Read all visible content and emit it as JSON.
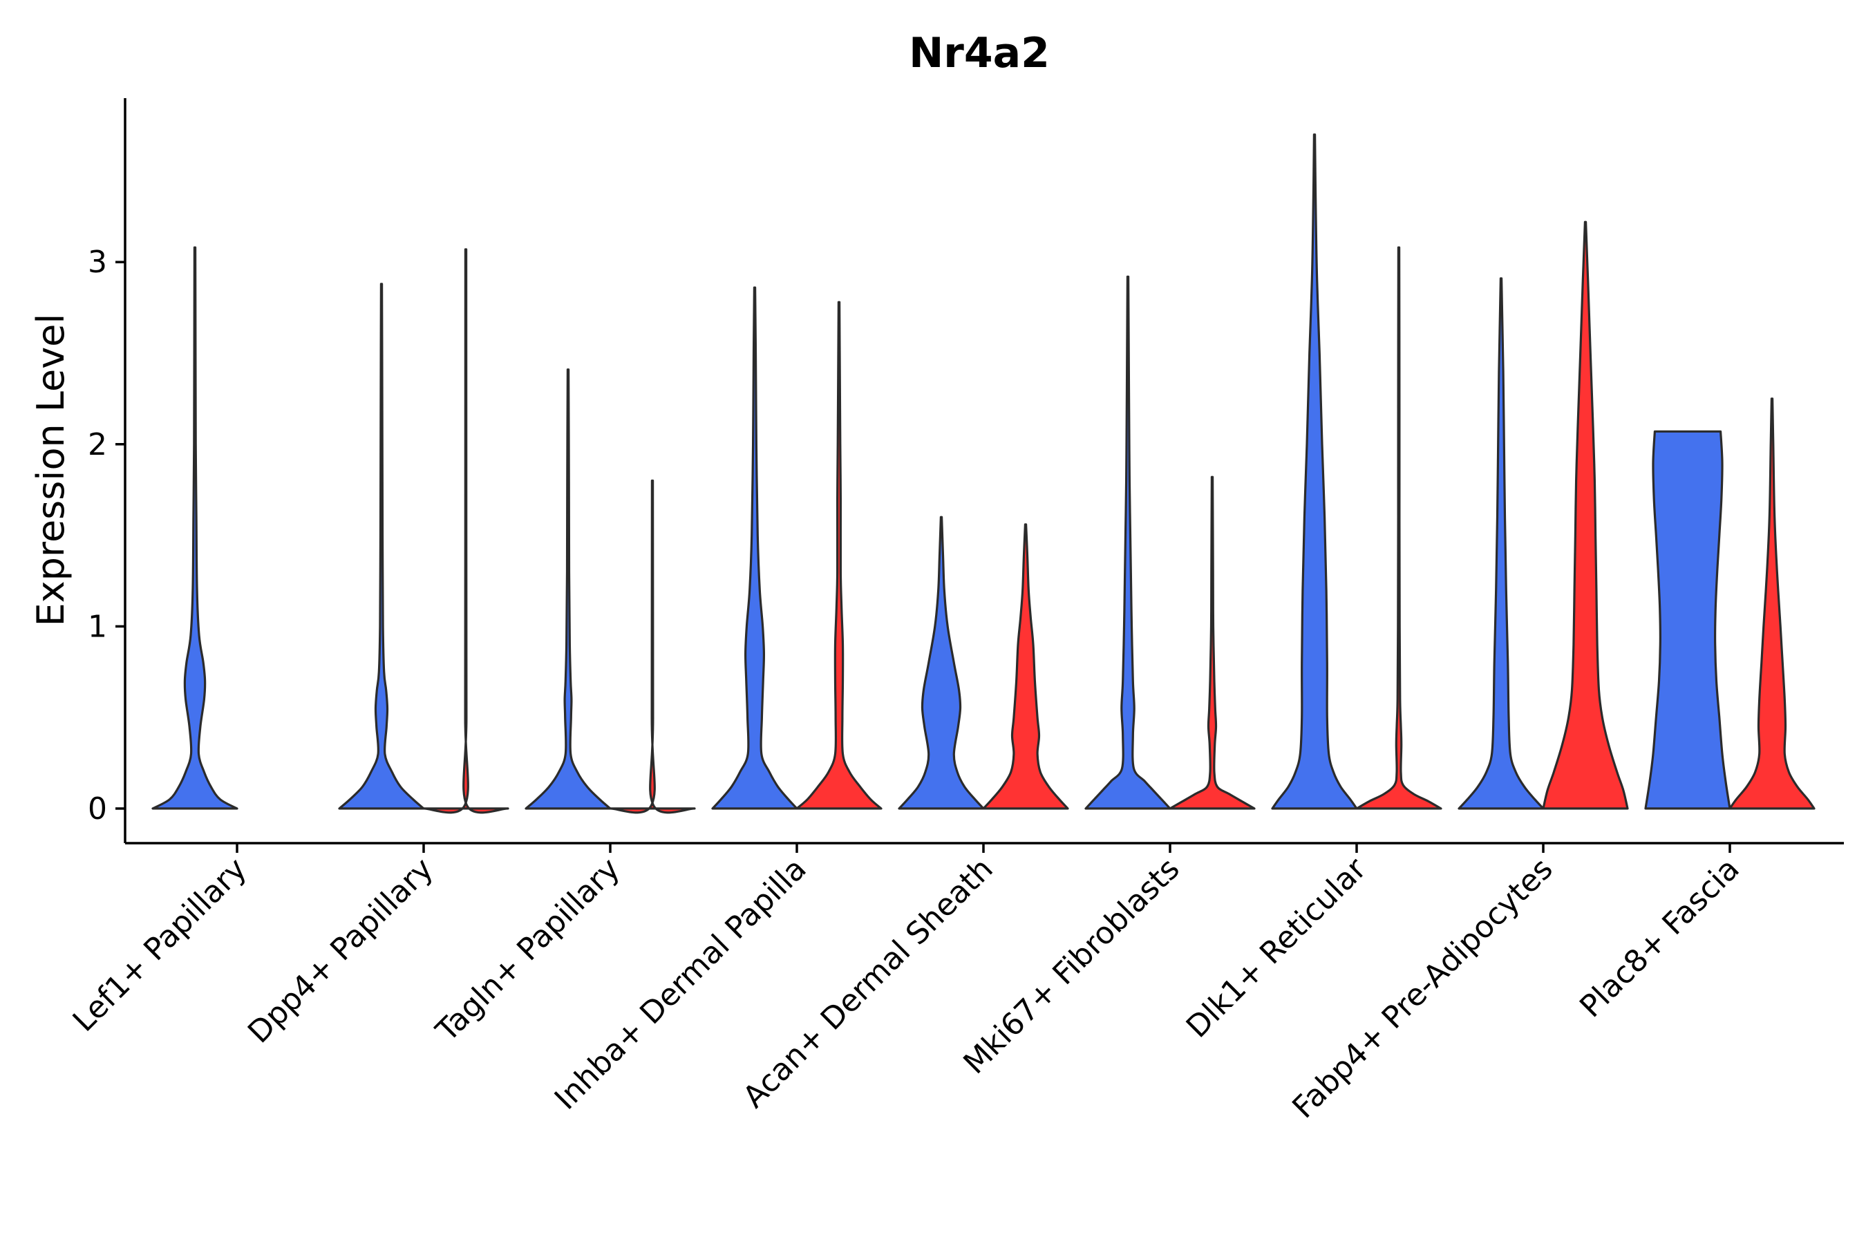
{
  "chart_data": {
    "type": "violin",
    "title": "Nr4a2",
    "ylabel": "Expression Level",
    "xlabel": "",
    "ylim": [
      -0.19,
      3.9
    ],
    "yticks": [
      0,
      1,
      2,
      3
    ],
    "colors": {
      "group1": "#4472EE",
      "group2": "#FF3333"
    },
    "categories": [
      "Lef1+ Papillary",
      "Dpp4+ Papillary",
      "Tagln+ Papillary",
      "Inhba+ Dermal Papilla",
      "Acan+ Dermal Sheath",
      "Mki67+ Fibroblasts",
      "Dlk1+ Reticular",
      "Fabp4+ Pre-Adipocytes",
      "Plac8+ Fascia"
    ],
    "violins": [
      {
        "category": 0,
        "group": "group1",
        "max": 3.08,
        "profile": [
          [
            0,
            1.0
          ],
          [
            0.05,
            0.6
          ],
          [
            0.12,
            0.38
          ],
          [
            0.2,
            0.22
          ],
          [
            0.3,
            0.09
          ],
          [
            0.45,
            0.13
          ],
          [
            0.6,
            0.22
          ],
          [
            0.7,
            0.24
          ],
          [
            0.8,
            0.2
          ],
          [
            0.95,
            0.1
          ],
          [
            1.2,
            0.05
          ],
          [
            1.6,
            0.035
          ],
          [
            2.0,
            0.02
          ],
          [
            2.5,
            0.015
          ],
          [
            3.08,
            0.01
          ]
        ]
      },
      {
        "category": 1,
        "group": "group1",
        "max": 2.88,
        "profile": [
          [
            0,
            1.0
          ],
          [
            0.05,
            0.75
          ],
          [
            0.12,
            0.45
          ],
          [
            0.2,
            0.25
          ],
          [
            0.3,
            0.08
          ],
          [
            0.45,
            0.12
          ],
          [
            0.55,
            0.14
          ],
          [
            0.65,
            0.11
          ],
          [
            0.75,
            0.06
          ],
          [
            1.0,
            0.035
          ],
          [
            1.5,
            0.025
          ],
          [
            2.0,
            0.02
          ],
          [
            2.5,
            0.015
          ],
          [
            2.88,
            0.01
          ]
        ]
      },
      {
        "category": 1,
        "group": "group2",
        "max": 3.07,
        "profile": [
          [
            0,
            1.0
          ],
          [
            0.02,
            0.02
          ],
          [
            0.5,
            0.015
          ],
          [
            1.5,
            0.012
          ],
          [
            3.07,
            0.01
          ]
        ]
      },
      {
        "category": 2,
        "group": "group1",
        "max": 2.41,
        "profile": [
          [
            0,
            1.0
          ],
          [
            0.05,
            0.75
          ],
          [
            0.12,
            0.45
          ],
          [
            0.2,
            0.22
          ],
          [
            0.3,
            0.06
          ],
          [
            0.5,
            0.07
          ],
          [
            0.6,
            0.08
          ],
          [
            0.7,
            0.06
          ],
          [
            0.9,
            0.04
          ],
          [
            1.3,
            0.025
          ],
          [
            1.8,
            0.02
          ],
          [
            2.41,
            0.01
          ]
        ]
      },
      {
        "category": 2,
        "group": "group2",
        "max": 1.8,
        "profile": [
          [
            0,
            1.0
          ],
          [
            0.02,
            0.02
          ],
          [
            0.5,
            0.015
          ],
          [
            1.8,
            0.01
          ]
        ]
      },
      {
        "category": 3,
        "group": "group1",
        "max": 2.86,
        "profile": [
          [
            0,
            1.0
          ],
          [
            0.05,
            0.8
          ],
          [
            0.12,
            0.55
          ],
          [
            0.2,
            0.35
          ],
          [
            0.3,
            0.16
          ],
          [
            0.5,
            0.17
          ],
          [
            0.7,
            0.2
          ],
          [
            0.85,
            0.22
          ],
          [
            1.0,
            0.19
          ],
          [
            1.2,
            0.12
          ],
          [
            1.5,
            0.07
          ],
          [
            2.0,
            0.04
          ],
          [
            2.5,
            0.025
          ],
          [
            2.86,
            0.01
          ]
        ]
      },
      {
        "category": 3,
        "group": "group2",
        "max": 2.78,
        "profile": [
          [
            0,
            1.0
          ],
          [
            0.05,
            0.75
          ],
          [
            0.12,
            0.5
          ],
          [
            0.2,
            0.25
          ],
          [
            0.3,
            0.09
          ],
          [
            0.5,
            0.08
          ],
          [
            0.7,
            0.09
          ],
          [
            0.9,
            0.09
          ],
          [
            1.1,
            0.06
          ],
          [
            1.3,
            0.04
          ],
          [
            1.7,
            0.04
          ],
          [
            2.0,
            0.03
          ],
          [
            2.78,
            0.01
          ]
        ]
      },
      {
        "category": 4,
        "group": "group1",
        "max": 1.6,
        "profile": [
          [
            0,
            1.0
          ],
          [
            0.05,
            0.8
          ],
          [
            0.12,
            0.55
          ],
          [
            0.2,
            0.38
          ],
          [
            0.3,
            0.3
          ],
          [
            0.45,
            0.4
          ],
          [
            0.55,
            0.45
          ],
          [
            0.65,
            0.42
          ],
          [
            0.8,
            0.3
          ],
          [
            1.0,
            0.15
          ],
          [
            1.2,
            0.07
          ],
          [
            1.4,
            0.04
          ],
          [
            1.6,
            0.01
          ]
        ]
      },
      {
        "category": 4,
        "group": "group2",
        "max": 1.56,
        "profile": [
          [
            0,
            1.0
          ],
          [
            0.05,
            0.8
          ],
          [
            0.12,
            0.55
          ],
          [
            0.2,
            0.35
          ],
          [
            0.3,
            0.28
          ],
          [
            0.4,
            0.32
          ],
          [
            0.5,
            0.28
          ],
          [
            0.7,
            0.22
          ],
          [
            0.9,
            0.18
          ],
          [
            1.05,
            0.12
          ],
          [
            1.2,
            0.07
          ],
          [
            1.4,
            0.04
          ],
          [
            1.56,
            0.01
          ]
        ]
      },
      {
        "category": 5,
        "group": "group1",
        "max": 2.92,
        "profile": [
          [
            0,
            1.0
          ],
          [
            0.05,
            0.8
          ],
          [
            0.1,
            0.6
          ],
          [
            0.15,
            0.4
          ],
          [
            0.22,
            0.14
          ],
          [
            0.4,
            0.12
          ],
          [
            0.55,
            0.15
          ],
          [
            0.7,
            0.12
          ],
          [
            1.0,
            0.09
          ],
          [
            1.3,
            0.07
          ],
          [
            1.8,
            0.04
          ],
          [
            2.3,
            0.025
          ],
          [
            2.92,
            0.01
          ]
        ]
      },
      {
        "category": 5,
        "group": "group2",
        "max": 1.82,
        "profile": [
          [
            0,
            1.0
          ],
          [
            0.04,
            0.7
          ],
          [
            0.08,
            0.4
          ],
          [
            0.12,
            0.12
          ],
          [
            0.2,
            0.05
          ],
          [
            0.35,
            0.06
          ],
          [
            0.45,
            0.09
          ],
          [
            0.55,
            0.07
          ],
          [
            0.7,
            0.05
          ],
          [
            1.0,
            0.025
          ],
          [
            1.3,
            0.02
          ],
          [
            1.82,
            0.01
          ]
        ]
      },
      {
        "category": 6,
        "group": "group1",
        "max": 3.7,
        "profile": [
          [
            0,
            1.0
          ],
          [
            0.05,
            0.85
          ],
          [
            0.12,
            0.62
          ],
          [
            0.2,
            0.45
          ],
          [
            0.3,
            0.34
          ],
          [
            0.5,
            0.3
          ],
          [
            0.8,
            0.3
          ],
          [
            1.2,
            0.28
          ],
          [
            1.6,
            0.24
          ],
          [
            2.0,
            0.18
          ],
          [
            2.5,
            0.12
          ],
          [
            2.9,
            0.06
          ],
          [
            3.3,
            0.03
          ],
          [
            3.7,
            0.01
          ]
        ]
      },
      {
        "category": 6,
        "group": "group2",
        "max": 3.08,
        "profile": [
          [
            0,
            1.0
          ],
          [
            0.04,
            0.7
          ],
          [
            0.08,
            0.35
          ],
          [
            0.13,
            0.1
          ],
          [
            0.2,
            0.05
          ],
          [
            0.35,
            0.06
          ],
          [
            0.45,
            0.05
          ],
          [
            0.6,
            0.03
          ],
          [
            1.0,
            0.02
          ],
          [
            1.6,
            0.015
          ],
          [
            2.2,
            0.015
          ],
          [
            3.08,
            0.01
          ]
        ]
      },
      {
        "category": 7,
        "group": "group1",
        "max": 2.91,
        "profile": [
          [
            0,
            1.0
          ],
          [
            0.05,
            0.8
          ],
          [
            0.12,
            0.55
          ],
          [
            0.2,
            0.35
          ],
          [
            0.3,
            0.22
          ],
          [
            0.5,
            0.18
          ],
          [
            0.8,
            0.16
          ],
          [
            1.2,
            0.12
          ],
          [
            1.6,
            0.09
          ],
          [
            2.0,
            0.07
          ],
          [
            2.4,
            0.05
          ],
          [
            2.91,
            0.01
          ]
        ]
      },
      {
        "category": 7,
        "group": "group2",
        "max": 3.22,
        "profile": [
          [
            0,
            1.0
          ],
          [
            0.1,
            0.9
          ],
          [
            0.2,
            0.75
          ],
          [
            0.35,
            0.55
          ],
          [
            0.5,
            0.4
          ],
          [
            0.65,
            0.32
          ],
          [
            0.9,
            0.28
          ],
          [
            1.2,
            0.26
          ],
          [
            1.5,
            0.24
          ],
          [
            1.8,
            0.22
          ],
          [
            2.1,
            0.18
          ],
          [
            2.5,
            0.12
          ],
          [
            2.9,
            0.06
          ],
          [
            3.22,
            0.01
          ]
        ]
      },
      {
        "category": 8,
        "group": "group1",
        "max": 2.07,
        "profile": [
          [
            0,
            1.0
          ],
          [
            0.15,
            0.9
          ],
          [
            0.3,
            0.82
          ],
          [
            0.5,
            0.75
          ],
          [
            0.7,
            0.68
          ],
          [
            0.9,
            0.65
          ],
          [
            1.1,
            0.66
          ],
          [
            1.3,
            0.7
          ],
          [
            1.5,
            0.75
          ],
          [
            1.7,
            0.8
          ],
          [
            1.9,
            0.82
          ],
          [
            2.07,
            0.78
          ]
        ]
      },
      {
        "category": 8,
        "group": "group2",
        "max": 2.25,
        "profile": [
          [
            0,
            1.0
          ],
          [
            0.05,
            0.85
          ],
          [
            0.12,
            0.6
          ],
          [
            0.2,
            0.4
          ],
          [
            0.3,
            0.3
          ],
          [
            0.45,
            0.32
          ],
          [
            0.6,
            0.3
          ],
          [
            0.8,
            0.25
          ],
          [
            1.0,
            0.2
          ],
          [
            1.3,
            0.12
          ],
          [
            1.6,
            0.06
          ],
          [
            2.0,
            0.03
          ],
          [
            2.25,
            0.01
          ]
        ]
      }
    ]
  }
}
